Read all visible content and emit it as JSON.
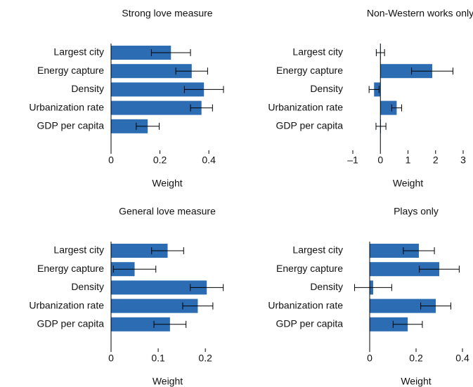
{
  "chart_data": [
    {
      "type": "bar",
      "orientation": "horizontal",
      "title": "Strong love measure",
      "x_label": "Weight",
      "categories": [
        "Largest city",
        "Energy capture",
        "Density",
        "Urbanization rate",
        "GDP per capita"
      ],
      "values": [
        0.245,
        0.33,
        0.38,
        0.37,
        0.15
      ],
      "errors": [
        0.08,
        0.065,
        0.08,
        0.045,
        0.047
      ],
      "color": "#2b6cb3",
      "xlim": [
        0,
        0.46
      ],
      "xticks": [
        0,
        0.2,
        0.4
      ]
    },
    {
      "type": "bar",
      "orientation": "horizontal",
      "title": "Non-Western works only",
      "x_label": "Weight",
      "categories": [
        "Largest city",
        "Energy capture",
        "Density",
        "Urbanization rate",
        "GDP per capita"
      ],
      "values": [
        0,
        1.88,
        -0.23,
        0.59,
        0.02
      ],
      "errors": [
        0.15,
        0.75,
        0.18,
        0.18,
        0.18
      ],
      "color": "#2b6cb3",
      "xlim": [
        -1,
        3
      ],
      "xticks": [
        {
          "value": -1,
          "label": "–1"
        },
        0,
        1,
        2,
        3
      ]
    },
    {
      "type": "bar",
      "orientation": "horizontal",
      "title": "General love measure",
      "x_label": "Weight",
      "categories": [
        "Largest city",
        "Energy capture",
        "Density",
        "Urbanization rate",
        "GDP per capita"
      ],
      "values": [
        0.12,
        0.05,
        0.203,
        0.184,
        0.125
      ],
      "errors": [
        0.034,
        0.045,
        0.035,
        0.032,
        0.034
      ],
      "color": "#2b6cb3",
      "xlim": [
        0,
        0.24
      ],
      "xticks": [
        0,
        0.1,
        0.2
      ]
    },
    {
      "type": "bar",
      "orientation": "horizontal",
      "title": "Plays only",
      "x_label": "Weight",
      "categories": [
        "Largest city",
        "Energy capture",
        "Density",
        "Urbanization rate",
        "GDP per capita"
      ],
      "values": [
        0.212,
        0.3,
        0.015,
        0.285,
        0.164
      ],
      "errors": [
        0.067,
        0.086,
        0.08,
        0.065,
        0.063
      ],
      "color": "#2b6cb3",
      "xlim": [
        0,
        0.4
      ],
      "xticks": [
        0,
        0.2,
        0.4
      ]
    }
  ]
}
